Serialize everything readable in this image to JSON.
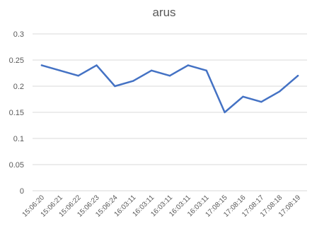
{
  "chart_data": {
    "type": "line",
    "title": "arus",
    "xlabel": "",
    "ylabel": "",
    "categories": [
      "15:06:20",
      "15:06:21",
      "15:06:22",
      "15:06:23",
      "15:06:24",
      "16:03:11",
      "16:03:11",
      "16:03:11",
      "16:03:11",
      "16:03:11",
      "17:08:15",
      "17:08:16",
      "17:08:17",
      "17:08:18",
      "17:08:19"
    ],
    "series": [
      {
        "values": [
          0.24,
          0.23,
          0.22,
          0.24,
          0.2,
          0.21,
          0.23,
          0.22,
          0.24,
          0.23,
          0.15,
          0.18,
          0.17,
          0.19,
          0.22
        ]
      }
    ],
    "ylim": [
      0,
      0.3
    ],
    "yticks": [
      "0",
      "0.05",
      "0.1",
      "0.15",
      "0.2",
      "0.25",
      "0.3"
    ],
    "grid": true,
    "legend": "none",
    "colors": {
      "line": "#4472c4",
      "grid": "#d9d9d9",
      "text": "#595959"
    }
  }
}
